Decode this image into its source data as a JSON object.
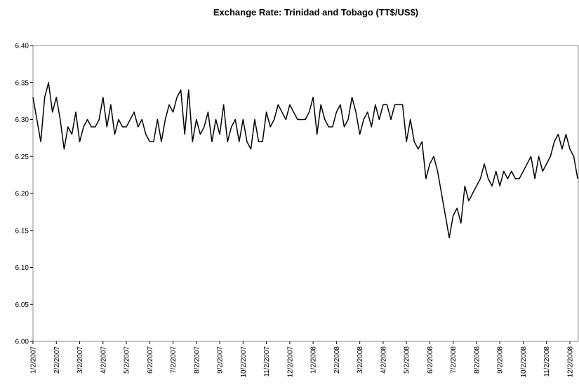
{
  "chart_data": {
    "type": "line",
    "title": "Exchange Rate: Trinidad and Tobago (TT$/US$)",
    "categories": [
      "1/2/2007",
      null,
      null,
      null,
      null,
      null,
      "2/2/2007",
      null,
      null,
      null,
      null,
      null,
      "3/2/2007",
      null,
      null,
      null,
      null,
      null,
      "4/2/2007",
      null,
      null,
      null,
      null,
      null,
      "5/2/2007",
      null,
      null,
      null,
      null,
      null,
      "6/2/2007",
      null,
      null,
      null,
      null,
      null,
      "7/2/2007",
      null,
      null,
      null,
      null,
      null,
      "8/2/2007",
      null,
      null,
      null,
      null,
      null,
      "9/2/2007",
      null,
      null,
      null,
      null,
      null,
      "10/2/2007",
      null,
      null,
      null,
      null,
      null,
      "11/2/2007",
      null,
      null,
      null,
      null,
      null,
      "12/2/2007",
      null,
      null,
      null,
      null,
      null,
      "1/2/2008",
      null,
      null,
      null,
      null,
      null,
      "2/2/2008",
      null,
      null,
      null,
      null,
      null,
      "3/2/2008",
      null,
      null,
      null,
      null,
      null,
      "4/2/2008",
      null,
      null,
      null,
      null,
      null,
      "5/2/2008",
      null,
      null,
      null,
      null,
      null,
      "6/2/2008",
      null,
      null,
      null,
      null,
      null,
      "7/2/2008",
      null,
      null,
      null,
      null,
      null,
      "8/2/2008",
      null,
      null,
      null,
      null,
      null,
      "9/2/2008",
      null,
      null,
      null,
      null,
      null,
      "10/2/2008",
      null,
      null,
      null,
      null,
      null,
      "11/2/2008",
      null,
      null,
      null,
      null,
      null,
      "12/2/2008",
      null,
      null
    ],
    "values": [
      6.33,
      6.3,
      6.27,
      6.33,
      6.35,
      6.31,
      6.33,
      6.3,
      6.26,
      6.29,
      6.28,
      6.31,
      6.27,
      6.29,
      6.3,
      6.29,
      6.29,
      6.3,
      6.33,
      6.29,
      6.32,
      6.28,
      6.3,
      6.29,
      6.29,
      6.3,
      6.31,
      6.29,
      6.3,
      6.28,
      6.27,
      6.27,
      6.3,
      6.27,
      6.3,
      6.32,
      6.31,
      6.33,
      6.34,
      6.28,
      6.34,
      6.27,
      6.3,
      6.28,
      6.29,
      6.31,
      6.27,
      6.3,
      6.28,
      6.32,
      6.27,
      6.29,
      6.3,
      6.27,
      6.3,
      6.27,
      6.26,
      6.3,
      6.27,
      6.27,
      6.31,
      6.29,
      6.3,
      6.32,
      6.31,
      6.3,
      6.32,
      6.31,
      6.3,
      6.3,
      6.3,
      6.31,
      6.33,
      6.28,
      6.32,
      6.3,
      6.29,
      6.29,
      6.31,
      6.32,
      6.29,
      6.3,
      6.33,
      6.31,
      6.28,
      6.3,
      6.31,
      6.29,
      6.32,
      6.3,
      6.32,
      6.32,
      6.3,
      6.32,
      6.32,
      6.32,
      6.27,
      6.3,
      6.27,
      6.26,
      6.27,
      6.22,
      6.24,
      6.25,
      6.23,
      6.2,
      6.17,
      6.14,
      6.17,
      6.18,
      6.16,
      6.21,
      6.19,
      6.2,
      6.21,
      6.22,
      6.24,
      6.22,
      6.21,
      6.23,
      6.21,
      6.23,
      6.22,
      6.23,
      6.22,
      6.22,
      6.23,
      6.24,
      6.25,
      6.22,
      6.25,
      6.23,
      6.24,
      6.25,
      6.27,
      6.28,
      6.26,
      6.28,
      6.26,
      6.25,
      6.22
    ],
    "color": "#000000",
    "ylim": [
      6.0,
      6.4
    ],
    "yticks": [
      {
        "value": 6.0,
        "label": "6.00"
      },
      {
        "value": 6.05,
        "label": "6.05"
      },
      {
        "value": 6.1,
        "label": "6.10"
      },
      {
        "value": 6.15,
        "label": "6.15"
      },
      {
        "value": 6.2,
        "label": "6.20"
      },
      {
        "value": 6.25,
        "label": "6.25"
      },
      {
        "value": 6.3,
        "label": "6.30"
      },
      {
        "value": 6.35,
        "label": "6.35"
      },
      {
        "value": 6.4,
        "label": "6.40"
      }
    ],
    "grid": false
  }
}
